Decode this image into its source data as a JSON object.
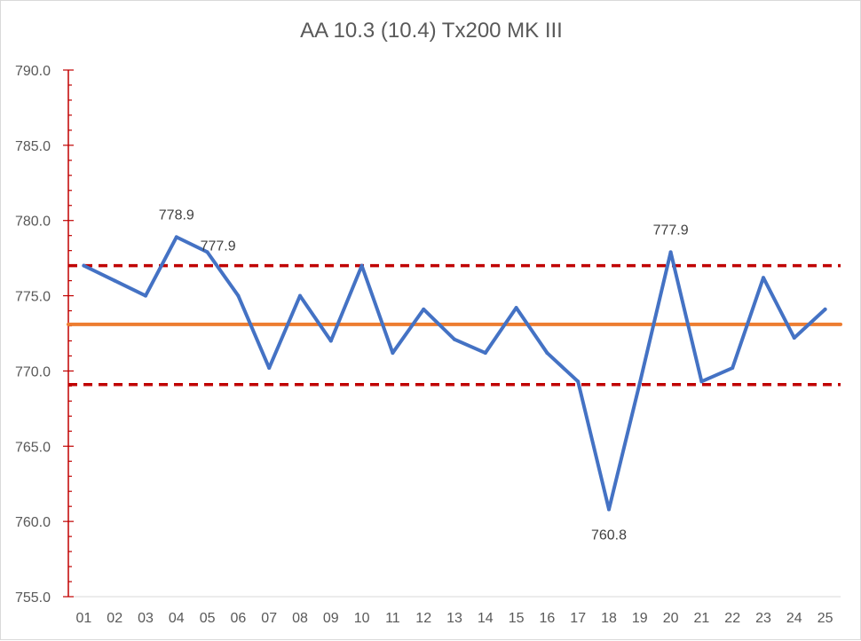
{
  "chart_data": {
    "type": "line",
    "title": "AA 10.3 (10.4) Tx200 MK III",
    "xlabel": "",
    "ylabel": "",
    "categories": [
      "01",
      "02",
      "03",
      "04",
      "05",
      "06",
      "07",
      "08",
      "09",
      "10",
      "11",
      "12",
      "13",
      "14",
      "15",
      "16",
      "17",
      "18",
      "19",
      "20",
      "21",
      "22",
      "23",
      "24",
      "25"
    ],
    "ylim": [
      755.0,
      790.0
    ],
    "y_major_step": 5.0,
    "y_tick_labels": [
      "755.0",
      "760.0",
      "765.0",
      "770.0",
      "775.0",
      "780.0",
      "785.0",
      "790.0"
    ],
    "grid": false,
    "legend": "none",
    "series": [
      {
        "role": "measurement",
        "color": "#4472C4",
        "style": "solid",
        "values": [
          777.0,
          776.0,
          775.0,
          778.9,
          777.9,
          775.0,
          770.2,
          775.0,
          772.0,
          777.0,
          771.2,
          774.1,
          772.1,
          771.2,
          774.2,
          771.2,
          769.3,
          760.8,
          769.2,
          777.9,
          769.3,
          770.2,
          776.2,
          772.2,
          774.1
        ]
      },
      {
        "role": "mean",
        "color": "#ED7D31",
        "style": "solid",
        "values": [
          773.1,
          773.1,
          773.1,
          773.1,
          773.1,
          773.1,
          773.1,
          773.1,
          773.1,
          773.1,
          773.1,
          773.1,
          773.1,
          773.1,
          773.1,
          773.1,
          773.1,
          773.1,
          773.1,
          773.1,
          773.1,
          773.1,
          773.1,
          773.1,
          773.1
        ]
      },
      {
        "role": "upper-limit",
        "color": "#C00000",
        "style": "dashed",
        "values": [
          777.0,
          777.0,
          777.0,
          777.0,
          777.0,
          777.0,
          777.0,
          777.0,
          777.0,
          777.0,
          777.0,
          777.0,
          777.0,
          777.0,
          777.0,
          777.0,
          777.0,
          777.0,
          777.0,
          777.0,
          777.0,
          777.0,
          777.0,
          777.0,
          777.0
        ]
      },
      {
        "role": "lower-limit",
        "color": "#C00000",
        "style": "dashed",
        "values": [
          769.1,
          769.1,
          769.1,
          769.1,
          769.1,
          769.1,
          769.1,
          769.1,
          769.1,
          769.1,
          769.1,
          769.1,
          769.1,
          769.1,
          769.1,
          769.1,
          769.1,
          769.1,
          769.1,
          769.1,
          769.1,
          769.1,
          769.1,
          769.1,
          769.1
        ]
      }
    ],
    "data_labels": [
      {
        "category": "04",
        "text": "778.9",
        "placement": "above"
      },
      {
        "category": "05",
        "text": "777.9",
        "placement": "right"
      },
      {
        "category": "18",
        "text": "760.8",
        "placement": "below"
      },
      {
        "category": "20",
        "text": "777.9",
        "placement": "above"
      }
    ],
    "axis_color": "#C00000"
  }
}
